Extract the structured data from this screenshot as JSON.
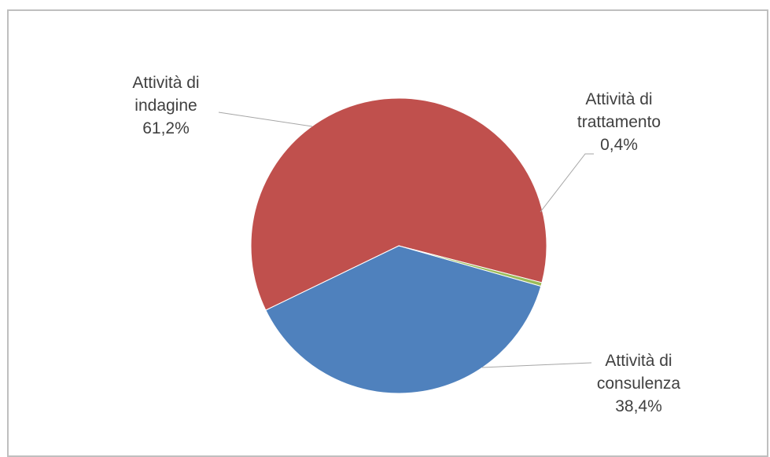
{
  "chart_data": {
    "type": "pie",
    "title": "",
    "slices": [
      {
        "label_lines": [
          "Attività di",
          "consulenza"
        ],
        "value_label": "38,4%",
        "value": 38.4,
        "color": "#4f81bd"
      },
      {
        "label_lines": [
          "Attività di",
          "indagine"
        ],
        "value_label": "61,2%",
        "value": 61.2,
        "color": "#c0504d"
      },
      {
        "label_lines": [
          "Attività di",
          "trattamento"
        ],
        "value_label": "0,4%",
        "value": 0.4,
        "color": "#9bbb59"
      }
    ],
    "legend": "none",
    "data_labels": "outside with leader lines"
  }
}
